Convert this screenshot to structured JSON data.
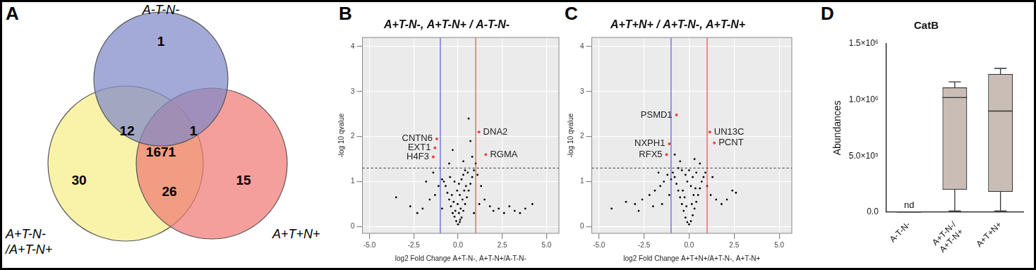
{
  "panel_labels": [
    "A",
    "B",
    "C",
    "D"
  ],
  "venn": {
    "sets": [
      {
        "name": [
          "A-T-N-"
        ],
        "color": "#7f89c9"
      },
      {
        "name": [
          "A+T-N-",
          "/A+T-N+"
        ],
        "color": "#f5ef86"
      },
      {
        "name": [
          "A+T+N+"
        ],
        "color": "#f07a75"
      }
    ],
    "regions": [
      {
        "sets": [
          0
        ],
        "value": 1
      },
      {
        "sets": [
          0,
          1
        ],
        "value": 12
      },
      {
        "sets": [
          0,
          2
        ],
        "value": 1
      },
      {
        "sets": [
          0,
          1,
          2
        ],
        "value": 1671
      },
      {
        "sets": [
          1
        ],
        "value": 30
      },
      {
        "sets": [
          1,
          2
        ],
        "value": 26
      },
      {
        "sets": [
          2
        ],
        "value": 15
      }
    ]
  },
  "chart_data": [
    {
      "type": "scatter",
      "title": "A+T-N-, A+T-N+ / A-T-N-",
      "x_label": "log2 Fold Change A+T-N-, A+T-N+/A-T-N-",
      "y_label": "-log 10 qvalue",
      "xlim": [
        -5.4,
        5.7
      ],
      "xticks": [
        {
          "value": -5,
          "label": "-5.0"
        },
        {
          "value": -2.5,
          "label": "-2.5"
        },
        {
          "value": 0,
          "label": "0.0"
        },
        {
          "value": 2.5,
          "label": "2.5"
        },
        {
          "value": 5,
          "label": "5.0"
        }
      ],
      "ylim": [
        -0.15,
        4.2
      ],
      "yticks": [
        0,
        1,
        2,
        3,
        4
      ],
      "grid": true,
      "color": "#000000",
      "points": [
        [
          0,
          0.05
        ],
        [
          0.1,
          0.1
        ],
        [
          -0.1,
          0.12
        ],
        [
          0.2,
          0.2
        ],
        [
          -0.2,
          0.22
        ],
        [
          0.3,
          0.35
        ],
        [
          -0.3,
          0.3
        ],
        [
          0.4,
          0.5
        ],
        [
          -0.4,
          0.45
        ],
        [
          0.5,
          0.65
        ],
        [
          -0.5,
          0.6
        ],
        [
          0.6,
          0.8
        ],
        [
          -0.6,
          0.75
        ],
        [
          0.7,
          0.95
        ],
        [
          -0.7,
          0.9
        ],
        [
          0.8,
          1.1
        ],
        [
          -0.8,
          1.0
        ],
        [
          0.15,
          0.4
        ],
        [
          -0.15,
          0.35
        ],
        [
          0.25,
          0.6
        ],
        [
          -0.25,
          0.55
        ],
        [
          0.35,
          0.8
        ],
        [
          -0.35,
          0.7
        ],
        [
          0.45,
          0.9
        ],
        [
          0.1,
          0.7
        ],
        [
          -0.05,
          0.8
        ],
        [
          0.05,
          0.95
        ],
        [
          0.2,
          1.05
        ],
        [
          -0.2,
          1.0
        ],
        [
          0.3,
          1.15
        ],
        [
          0.55,
          1.2
        ],
        [
          -0.45,
          1.1
        ],
        [
          0.4,
          1.25
        ],
        [
          0.9,
          1.25
        ],
        [
          1.1,
          1.15
        ],
        [
          1.3,
          0.9
        ],
        [
          1.5,
          0.6
        ],
        [
          1.8,
          0.45
        ],
        [
          2.0,
          0.35
        ],
        [
          2.3,
          0.4
        ],
        [
          2.6,
          0.3
        ],
        [
          2.9,
          0.45
        ],
        [
          3.2,
          0.35
        ],
        [
          3.5,
          0.3
        ],
        [
          3.8,
          0.4
        ],
        [
          4.2,
          0.5
        ],
        [
          -0.9,
          1.05
        ],
        [
          -1.1,
          0.9
        ],
        [
          -1.3,
          0.7
        ],
        [
          -1.6,
          0.6
        ],
        [
          -2.0,
          0.4
        ],
        [
          -2.3,
          0.3
        ],
        [
          -2.7,
          0.45
        ],
        [
          -3.5,
          0.65
        ],
        [
          -1.8,
          1.0
        ],
        [
          0.6,
          2.4
        ],
        [
          0.8,
          1.55
        ],
        [
          0.3,
          1.45
        ],
        [
          -0.5,
          1.4
        ],
        [
          0.7,
          1.9
        ],
        [
          -0.3,
          1.7
        ],
        [
          1.0,
          1.4
        ],
        [
          0.05,
          0.3
        ],
        [
          -0.02,
          0.5
        ],
        [
          0.12,
          0.15
        ],
        [
          1.2,
          0.5
        ],
        [
          0.9,
          0.3
        ],
        [
          -0.9,
          0.4
        ],
        [
          -1.4,
          1.2
        ]
      ],
      "annotations": [
        {
          "text": "CNTN6",
          "x": -1.2,
          "y": 1.95,
          "color": "#e8483f"
        },
        {
          "text": "EXT1",
          "x": -1.3,
          "y": 1.75,
          "color": "#e8483f"
        },
        {
          "text": "H4F3",
          "x": -1.4,
          "y": 1.55,
          "color": "#e8483f"
        },
        {
          "text": "DNA2",
          "x": 1.18,
          "y": 2.1,
          "color": "#e8483f"
        },
        {
          "text": "RGMA",
          "x": 1.57,
          "y": 1.6,
          "color": "#e8483f"
        }
      ],
      "reference_lines": [
        {
          "axis": "x",
          "value": -1,
          "color": "#3b3bd6",
          "line_style": "solid"
        },
        {
          "axis": "x",
          "value": 1,
          "color": "#ee2b2b",
          "line_style": "solid"
        },
        {
          "axis": "y",
          "value": 1.3,
          "color": "#333333",
          "line_style": "dashed"
        }
      ]
    },
    {
      "type": "scatter",
      "title": "A+T+N+ / A+T-N-, A+T-N+",
      "x_label": "log2 Fold Change A+T+N+/A+T-N-, A+T-N+",
      "y_label": "-log 10 qvalue",
      "xlim": [
        -5.4,
        5.7
      ],
      "xticks": [
        {
          "value": -5,
          "label": "-5.0"
        },
        {
          "value": -2.5,
          "label": "-2.5"
        },
        {
          "value": 0,
          "label": "0.0"
        },
        {
          "value": 2.5,
          "label": "2.5"
        },
        {
          "value": 5,
          "label": "5.0"
        }
      ],
      "ylim": [
        -0.15,
        4.2
      ],
      "yticks": [
        0,
        1,
        2,
        3,
        4
      ],
      "grid": true,
      "color": "#000000",
      "points": [
        [
          0,
          0.05
        ],
        [
          0.1,
          0.12
        ],
        [
          -0.1,
          0.1
        ],
        [
          0.2,
          0.25
        ],
        [
          -0.2,
          0.2
        ],
        [
          0.3,
          0.4
        ],
        [
          -0.3,
          0.35
        ],
        [
          0.4,
          0.55
        ],
        [
          -0.4,
          0.5
        ],
        [
          0.5,
          0.7
        ],
        [
          -0.5,
          0.65
        ],
        [
          0.6,
          0.85
        ],
        [
          -0.6,
          0.8
        ],
        [
          0.7,
          1.0
        ],
        [
          -0.7,
          0.95
        ],
        [
          0.8,
          1.1
        ],
        [
          -0.8,
          1.1
        ],
        [
          0.9,
          1.2
        ],
        [
          -0.9,
          1.2
        ],
        [
          0.15,
          0.5
        ],
        [
          -0.15,
          0.45
        ],
        [
          0.25,
          0.7
        ],
        [
          -0.25,
          0.65
        ],
        [
          0.35,
          0.85
        ],
        [
          -0.35,
          0.8
        ],
        [
          0.1,
          0.9
        ],
        [
          -0.1,
          1.0
        ],
        [
          0.2,
          1.1
        ],
        [
          -0.2,
          1.15
        ],
        [
          0.4,
          1.2
        ],
        [
          -0.4,
          1.25
        ],
        [
          -0.6,
          1.3
        ],
        [
          0.0,
          1.25
        ],
        [
          1.0,
          0.9
        ],
        [
          1.2,
          0.7
        ],
        [
          1.5,
          0.6
        ],
        [
          1.8,
          0.5
        ],
        [
          2.1,
          0.6
        ],
        [
          2.4,
          0.8
        ],
        [
          2.6,
          0.75
        ],
        [
          -1.0,
          1.05
        ],
        [
          -1.2,
          1.15
        ],
        [
          -1.4,
          1.0
        ],
        [
          -1.6,
          0.9
        ],
        [
          -1.9,
          0.8
        ],
        [
          -2.2,
          0.7
        ],
        [
          -2.6,
          0.6
        ],
        [
          -3.0,
          0.5
        ],
        [
          -3.5,
          0.55
        ],
        [
          -4.3,
          0.4
        ],
        [
          -1.1,
          0.7
        ],
        [
          -1.5,
          0.5
        ],
        [
          -2.0,
          0.45
        ],
        [
          -2.8,
          0.35
        ],
        [
          -0.5,
          1.45
        ],
        [
          0.3,
          1.5
        ],
        [
          -0.8,
          1.6
        ],
        [
          0.6,
          1.4
        ],
        [
          1.3,
          1.1
        ],
        [
          -1.7,
          1.2
        ]
      ],
      "annotations": [
        {
          "text": "PSMD1",
          "x": -0.7,
          "y": 2.48,
          "color": "#e8483f"
        },
        {
          "text": "NXPH1",
          "x": -1.1,
          "y": 1.84,
          "color": "#e8483f"
        },
        {
          "text": "RFX5",
          "x": -1.25,
          "y": 1.6,
          "color": "#e8483f"
        },
        {
          "text": "UN13C",
          "x": 1.15,
          "y": 2.1,
          "color": "#e8483f"
        },
        {
          "text": "PCNT",
          "x": 1.4,
          "y": 1.86,
          "color": "#e8483f"
        }
      ],
      "reference_lines": [
        {
          "axis": "x",
          "value": -1,
          "color": "#3b3bd6",
          "line_style": "solid"
        },
        {
          "axis": "x",
          "value": 1,
          "color": "#ee2b2b",
          "line_style": "solid"
        },
        {
          "axis": "y",
          "value": 1.3,
          "color": "#333333",
          "line_style": "dashed"
        }
      ]
    },
    {
      "type": "boxplot",
      "title": "CatB",
      "y_label": "Abundances",
      "categories": [
        [
          "A-T-N-"
        ],
        [
          "A+T-N-/",
          "A+T-N+"
        ],
        [
          "A+T+N+"
        ]
      ],
      "ylim": [
        0,
        1500000
      ],
      "yticks": [
        {
          "value": 0,
          "label": "0.0"
        },
        {
          "value": 500000,
          "label": "5.0×10⁵"
        },
        {
          "value": 1000000,
          "label": "1.0×10⁶"
        },
        {
          "value": 1500000,
          "label": "1.5×10⁶"
        }
      ],
      "grid": false,
      "color": "#c9bdb6",
      "boxes": [
        {
          "min": 0,
          "q1": 0,
          "median": 0,
          "q3": 0,
          "max": 0,
          "label": "nd"
        },
        {
          "min": 10000,
          "q1": 200000,
          "median": 1020000,
          "q3": 1110000,
          "max": 1160000
        },
        {
          "min": 10000,
          "q1": 180000,
          "median": 900000,
          "q3": 1230000,
          "max": 1280000
        }
      ]
    }
  ]
}
